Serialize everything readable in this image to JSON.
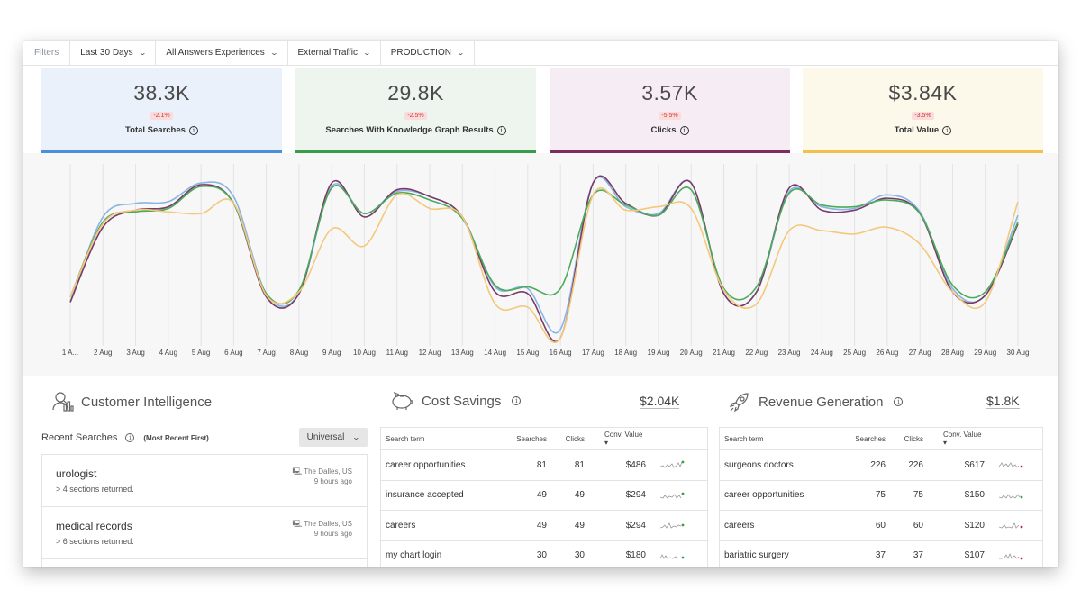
{
  "filters": {
    "label": "Filters",
    "date_range": "Last 30 Days",
    "experience": "All Answers Experiences",
    "traffic": "External Traffic",
    "environment": "PRODUCTION"
  },
  "kpis": [
    {
      "value": "38.3K",
      "delta": "-2.1%",
      "label": "Total Searches",
      "color": "#eaf1fa",
      "bar": "#4a90d9"
    },
    {
      "value": "29.8K",
      "delta": "-2.5%",
      "label": "Searches With Knowledge Graph Results",
      "color": "#edf5ee",
      "bar": "#3a9b4a"
    },
    {
      "value": "3.57K",
      "delta": "-5.5%",
      "label": "Clicks",
      "color": "#f5edf3",
      "bar": "#7b2d5f"
    },
    {
      "value": "$3.84K",
      "delta": "-3.5%",
      "label": "Total Value",
      "color": "#fcf8ea",
      "bar": "#f3c04c"
    }
  ],
  "chart_data": {
    "type": "line",
    "x": [
      "1 A...",
      "2 Aug",
      "3 Aug",
      "4 Aug",
      "5 Aug",
      "6 Aug",
      "7 Aug",
      "8 Aug",
      "9 Aug",
      "10 Aug",
      "11 Aug",
      "12 Aug",
      "13 Aug",
      "14 Aug",
      "15 Aug",
      "16 Aug",
      "17 Aug",
      "18 Aug",
      "19 Aug",
      "20 Aug",
      "21 Aug",
      "22 Aug",
      "23 Aug",
      "24 Aug",
      "25 Aug",
      "26 Aug",
      "27 Aug",
      "28 Aug",
      "29 Aug",
      "30 Aug"
    ],
    "grid": true,
    "legend": "none",
    "series": [
      {
        "color": "#8ab4e3",
        "values": [
          0.22,
          0.72,
          0.8,
          0.81,
          0.92,
          0.84,
          0.27,
          0.27,
          0.9,
          0.74,
          0.87,
          0.84,
          0.72,
          0.31,
          0.3,
          0.06,
          0.92,
          0.78,
          0.74,
          0.92,
          0.27,
          0.28,
          0.87,
          0.78,
          0.77,
          0.85,
          0.75,
          0.3,
          0.26,
          0.73
        ]
      },
      {
        "color": "#7a3b67",
        "values": [
          0.22,
          0.66,
          0.76,
          0.78,
          0.91,
          0.8,
          0.25,
          0.27,
          0.92,
          0.72,
          0.88,
          0.84,
          0.72,
          0.28,
          0.27,
          0.01,
          0.92,
          0.8,
          0.73,
          0.92,
          0.27,
          0.28,
          0.89,
          0.76,
          0.76,
          0.83,
          0.74,
          0.28,
          0.26,
          0.68
        ]
      },
      {
        "color": "#4caa5b",
        "values": [
          0.25,
          0.69,
          0.75,
          0.77,
          0.9,
          0.8,
          0.27,
          0.29,
          0.89,
          0.74,
          0.86,
          0.82,
          0.71,
          0.32,
          0.31,
          0.3,
          0.85,
          0.79,
          0.73,
          0.88,
          0.3,
          0.31,
          0.86,
          0.79,
          0.78,
          0.82,
          0.74,
          0.32,
          0.28,
          0.69
        ]
      },
      {
        "color": "#f4c87a",
        "values": [
          0.25,
          0.68,
          0.76,
          0.75,
          0.74,
          0.8,
          0.26,
          0.28,
          0.65,
          0.55,
          0.85,
          0.77,
          0.72,
          0.21,
          0.19,
          0.01,
          0.85,
          0.76,
          0.78,
          0.77,
          0.29,
          0.21,
          0.64,
          0.64,
          0.62,
          0.66,
          0.56,
          0.28,
          0.22,
          0.81
        ]
      }
    ]
  },
  "customer_intelligence": {
    "title": "Customer Intelligence",
    "recent_label": "Recent Searches",
    "order_label": "(Most Recent First)",
    "select_value": "Universal",
    "items": [
      {
        "term": "urologist",
        "returned": "> 4 sections returned.",
        "location": "The Dalles, US",
        "time": "9 hours ago"
      },
      {
        "term": "medical records",
        "returned": "> 6 sections returned.",
        "location": "The Dalles, US",
        "time": "9 hours ago"
      }
    ]
  },
  "cost_savings": {
    "title": "Cost Savings",
    "total": "$2.04K",
    "headers": {
      "term": "Search term",
      "searches": "Searches",
      "clicks": "Clicks",
      "value": "Conv. Value"
    },
    "rows": [
      {
        "term": "career opportunities",
        "searches": "81",
        "clicks": "81",
        "value": "$486"
      },
      {
        "term": "insurance accepted",
        "searches": "49",
        "clicks": "49",
        "value": "$294"
      },
      {
        "term": "careers",
        "searches": "49",
        "clicks": "49",
        "value": "$294"
      },
      {
        "term": "my chart login",
        "searches": "30",
        "clicks": "30",
        "value": "$180"
      }
    ]
  },
  "revenue_generation": {
    "title": "Revenue Generation",
    "total": "$1.8K",
    "headers": {
      "term": "Search term",
      "searches": "Searches",
      "clicks": "Clicks",
      "value": "Conv. Value"
    },
    "rows": [
      {
        "term": "surgeons doctors",
        "searches": "226",
        "clicks": "226",
        "value": "$617"
      },
      {
        "term": "career opportunities",
        "searches": "75",
        "clicks": "75",
        "value": "$150"
      },
      {
        "term": "careers",
        "searches": "60",
        "clicks": "60",
        "value": "$120"
      },
      {
        "term": "bariatric surgery",
        "searches": "37",
        "clicks": "37",
        "value": "$107"
      }
    ]
  }
}
